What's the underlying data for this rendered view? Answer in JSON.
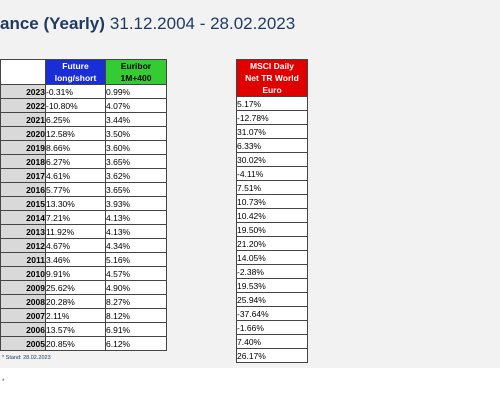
{
  "title": {
    "bold": "ance (Yearly)",
    "range": "31.12.2004 - 28.02.2023"
  },
  "headers": {
    "future": [
      "Future",
      "long/short"
    ],
    "euribor": [
      "Euribor",
      "1M+400"
    ],
    "msci": [
      "MSCI Daily",
      "Net TR World",
      "Euro"
    ]
  },
  "rows": [
    {
      "year": "2023",
      "future": "-0.31%",
      "euribor": "0.99%",
      "msci": "5.17%"
    },
    {
      "year": "2022",
      "future": "-10.80%",
      "euribor": "4.07%",
      "msci": "-12.78%"
    },
    {
      "year": "2021",
      "future": "6.25%",
      "euribor": "3.44%",
      "msci": "31.07%"
    },
    {
      "year": "2020",
      "future": "12.58%",
      "euribor": "3.50%",
      "msci": "6.33%"
    },
    {
      "year": "2019",
      "future": "8.66%",
      "euribor": "3.60%",
      "msci": "30.02%"
    },
    {
      "year": "2018",
      "future": "6.27%",
      "euribor": "3.65%",
      "msci": "-4.11%"
    },
    {
      "year": "2017",
      "future": "4.61%",
      "euribor": "3.62%",
      "msci": "7.51%"
    },
    {
      "year": "2016",
      "future": "5.77%",
      "euribor": "3.65%",
      "msci": "10.73%"
    },
    {
      "year": "2015",
      "future": "13.30%",
      "euribor": "3.93%",
      "msci": "10.42%"
    },
    {
      "year": "2014",
      "future": "7.21%",
      "euribor": "4.13%",
      "msci": "19.50%"
    },
    {
      "year": "2013",
      "future": "11.92%",
      "euribor": "4.13%",
      "msci": "21.20%"
    },
    {
      "year": "2012",
      "future": "4.67%",
      "euribor": "4.34%",
      "msci": "14.05%"
    },
    {
      "year": "2011",
      "future": "3.46%",
      "euribor": "5.16%",
      "msci": "-2.38%"
    },
    {
      "year": "2010",
      "future": "9.91%",
      "euribor": "4.57%",
      "msci": "19.53%"
    },
    {
      "year": "2009",
      "future": "25.62%",
      "euribor": "4.90%",
      "msci": "25.94%"
    },
    {
      "year": "2008",
      "future": "20.28%",
      "euribor": "8.27%",
      "msci": "-37.64%"
    },
    {
      "year": "2007",
      "future": "2.11%",
      "euribor": "8.12%",
      "msci": "-1.66%"
    },
    {
      "year": "2006",
      "future": "13.57%",
      "euribor": "6.91%",
      "msci": "7.40%"
    },
    {
      "year": "2005",
      "future": "20.85%",
      "euribor": "6.12%",
      "msci": "26.17%"
    }
  ],
  "footnote": "* Stand: 28.02.2023",
  "bottom_mark": "*",
  "colors": {
    "title": "#1f3b63",
    "future_header": "#1a2ed8",
    "euribor_header": "#33cc33",
    "msci_header": "#e00000",
    "year_cell": "#d9d9d9"
  }
}
